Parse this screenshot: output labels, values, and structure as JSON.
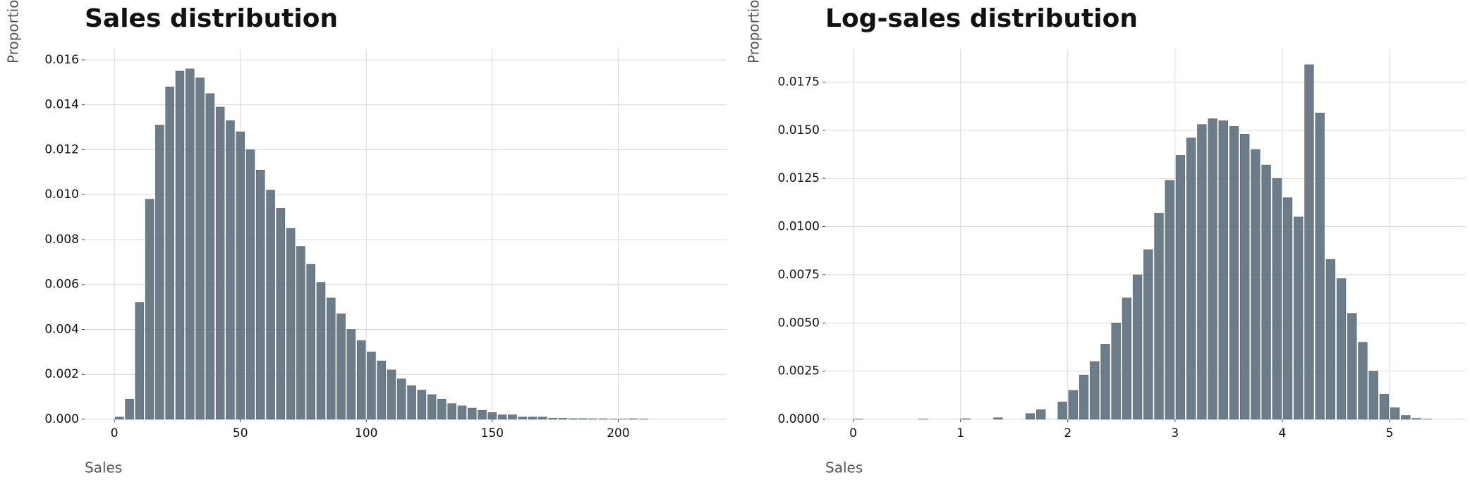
{
  "chart_data": [
    {
      "type": "histogram",
      "title": "Sales distribution",
      "xlabel": "Sales",
      "ylabel": "Proportion",
      "color": "#5c6f7c",
      "grid": true,
      "bins": [
        0,
        4,
        8,
        12,
        16,
        20,
        24,
        28,
        32,
        36,
        40,
        44,
        48,
        52,
        56,
        60,
        64,
        68,
        72,
        76,
        80,
        84,
        88,
        92,
        96,
        100,
        104,
        108,
        112,
        116,
        120,
        124,
        128,
        132,
        136,
        140,
        144,
        148,
        152,
        156,
        160,
        164,
        168,
        172,
        176,
        180,
        184,
        188,
        192,
        196,
        200,
        204,
        208,
        212
      ],
      "values": [
        0.0001,
        0.0009,
        0.0052,
        0.0098,
        0.0131,
        0.0148,
        0.0155,
        0.0156,
        0.0152,
        0.0145,
        0.0139,
        0.0133,
        0.0128,
        0.012,
        0.0111,
        0.0102,
        0.0094,
        0.0085,
        0.0077,
        0.0069,
        0.0061,
        0.0054,
        0.0047,
        0.004,
        0.0035,
        0.003,
        0.0026,
        0.0022,
        0.0018,
        0.0015,
        0.0013,
        0.0011,
        0.0009,
        0.0007,
        0.0006,
        0.0005,
        0.0004,
        0.0003,
        0.0002,
        0.0002,
        0.0001,
        0.0001,
        0.0001,
        5e-05,
        5e-05,
        3e-05,
        3e-05,
        2e-05,
        2e-05,
        1e-05,
        1e-05,
        2e-05,
        1e-05
      ],
      "xlim": [
        -11.8,
        243
      ],
      "xticks": [
        0,
        50,
        100,
        150,
        200
      ],
      "ylim": [
        0,
        0.01647
      ],
      "yticks": [
        {
          "value": 0,
          "label": "0.000"
        },
        {
          "value": 0.002,
          "label": "0.002"
        },
        {
          "value": 0.004,
          "label": "0.004"
        },
        {
          "value": 0.006,
          "label": "0.006"
        },
        {
          "value": 0.008,
          "label": "0.008"
        },
        {
          "value": 0.01,
          "label": "0.010"
        },
        {
          "value": 0.012,
          "label": "0.012"
        },
        {
          "value": 0.014,
          "label": "0.014"
        },
        {
          "value": 0.016,
          "label": "0.016"
        }
      ]
    },
    {
      "type": "histogram",
      "title": "Log-sales distribution",
      "xlabel": "Sales",
      "ylabel": "Proportion",
      "color": "#5c6f7c",
      "grid": true,
      "bins": [
        0,
        0.1,
        0.2,
        0.3,
        0.4,
        0.5,
        0.6,
        0.7,
        0.8,
        0.9,
        1,
        1.1,
        1.2,
        1.3,
        1.4,
        1.5,
        1.6,
        1.7,
        1.8,
        1.9,
        2,
        2.1,
        2.2,
        2.3,
        2.4,
        2.5,
        2.6,
        2.7,
        2.8,
        2.9,
        3,
        3.1,
        3.2,
        3.3,
        3.4,
        3.5,
        3.6,
        3.7,
        3.8,
        3.9,
        4,
        4.1,
        4.2,
        4.3,
        4.4,
        4.5,
        4.6,
        4.7,
        4.8,
        4.9,
        5,
        5.1,
        5.2,
        5.3,
        5.4
      ],
      "values": [
        1e-05,
        0,
        0,
        0,
        0,
        0,
        1e-05,
        0,
        0,
        0,
        3e-05,
        0,
        0,
        8e-05,
        0,
        0,
        0.0003,
        0.0005,
        0,
        0.0009,
        0.0015,
        0.0023,
        0.003,
        0.0039,
        0.005,
        0.0063,
        0.0075,
        0.0088,
        0.0107,
        0.0124,
        0.0137,
        0.0146,
        0.0153,
        0.0156,
        0.0155,
        0.0152,
        0.0148,
        0.014,
        0.0132,
        0.0125,
        0.0115,
        0.0105,
        0.0184,
        0.0159,
        0.0083,
        0.0073,
        0.0055,
        0.004,
        0.0025,
        0.0013,
        0.0006,
        0.0002,
        5e-05,
        1e-05
      ],
      "xlim": [
        -0.26,
        5.71
      ],
      "xticks": [
        0,
        1,
        2,
        3,
        4,
        5
      ],
      "ylim": [
        0,
        0.0192
      ],
      "yticks": [
        {
          "value": 0,
          "label": "0.0000"
        },
        {
          "value": 0.0025,
          "label": "0.0025"
        },
        {
          "value": 0.005,
          "label": "0.0050"
        },
        {
          "value": 0.0075,
          "label": "0.0075"
        },
        {
          "value": 0.01,
          "label": "0.0100"
        },
        {
          "value": 0.0125,
          "label": "0.0125"
        },
        {
          "value": 0.015,
          "label": "0.0150"
        },
        {
          "value": 0.0175,
          "label": "0.0175"
        }
      ]
    }
  ]
}
